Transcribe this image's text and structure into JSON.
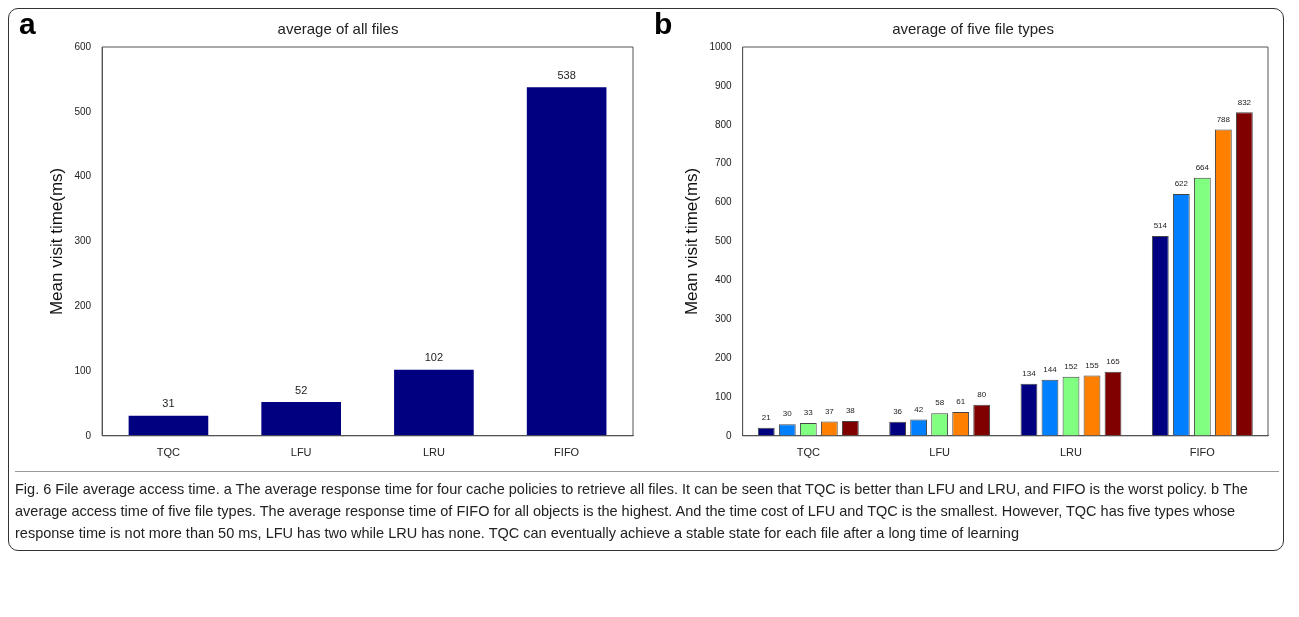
{
  "chart_data": [
    {
      "type": "bar",
      "title": "average of all files",
      "ylabel": "Mean visit time(ms)",
      "categories": [
        "TQC",
        "LFU",
        "LRU",
        "FIFO"
      ],
      "values": [
        31,
        52,
        102,
        538
      ],
      "color": "#000080",
      "ylim": [
        0,
        600
      ],
      "yticks": [
        0,
        100,
        200,
        300,
        400,
        500,
        600
      ],
      "data_labels": true,
      "grid": false,
      "legend": false,
      "annotations": [
        "a",
        "Fig. 6 File average access time. a The average response time for four cache policies to retrieve all files. It can be seen that TQC is better than LFU and LRU, and FIFO is the worst policy. b The average access time of five file types. The average response time of FIFO for all objects is the highest. And the time cost of LFU and TQC is the smallest. However, TQC has five types whose response time is not more than 50 ms, LFU has two while LRU has none. TQC can eventually achieve a stable state for each file after a long time of learning"
      ]
    },
    {
      "type": "bar",
      "title": "average of five file types",
      "ylabel": "Mean visit time(ms)",
      "categories": [
        "TQC",
        "LFU",
        "LRU",
        "FIFO"
      ],
      "series": [
        {
          "color": "#000080",
          "values": [
            21,
            36,
            134,
            514
          ]
        },
        {
          "color": "#0080ff",
          "values": [
            30,
            42,
            144,
            622
          ]
        },
        {
          "color": "#80ff80",
          "values": [
            33,
            58,
            152,
            664
          ]
        },
        {
          "color": "#ff8000",
          "values": [
            37,
            61,
            155,
            788
          ]
        },
        {
          "color": "#800000",
          "values": [
            38,
            80,
            165,
            832
          ]
        }
      ],
      "ylim": [
        0,
        1000
      ],
      "yticks": [
        0,
        100,
        200,
        300,
        400,
        500,
        600,
        700,
        800,
        900,
        1000
      ],
      "data_labels": true,
      "grid": false,
      "legend": false,
      "annotations": [
        "b"
      ]
    }
  ]
}
